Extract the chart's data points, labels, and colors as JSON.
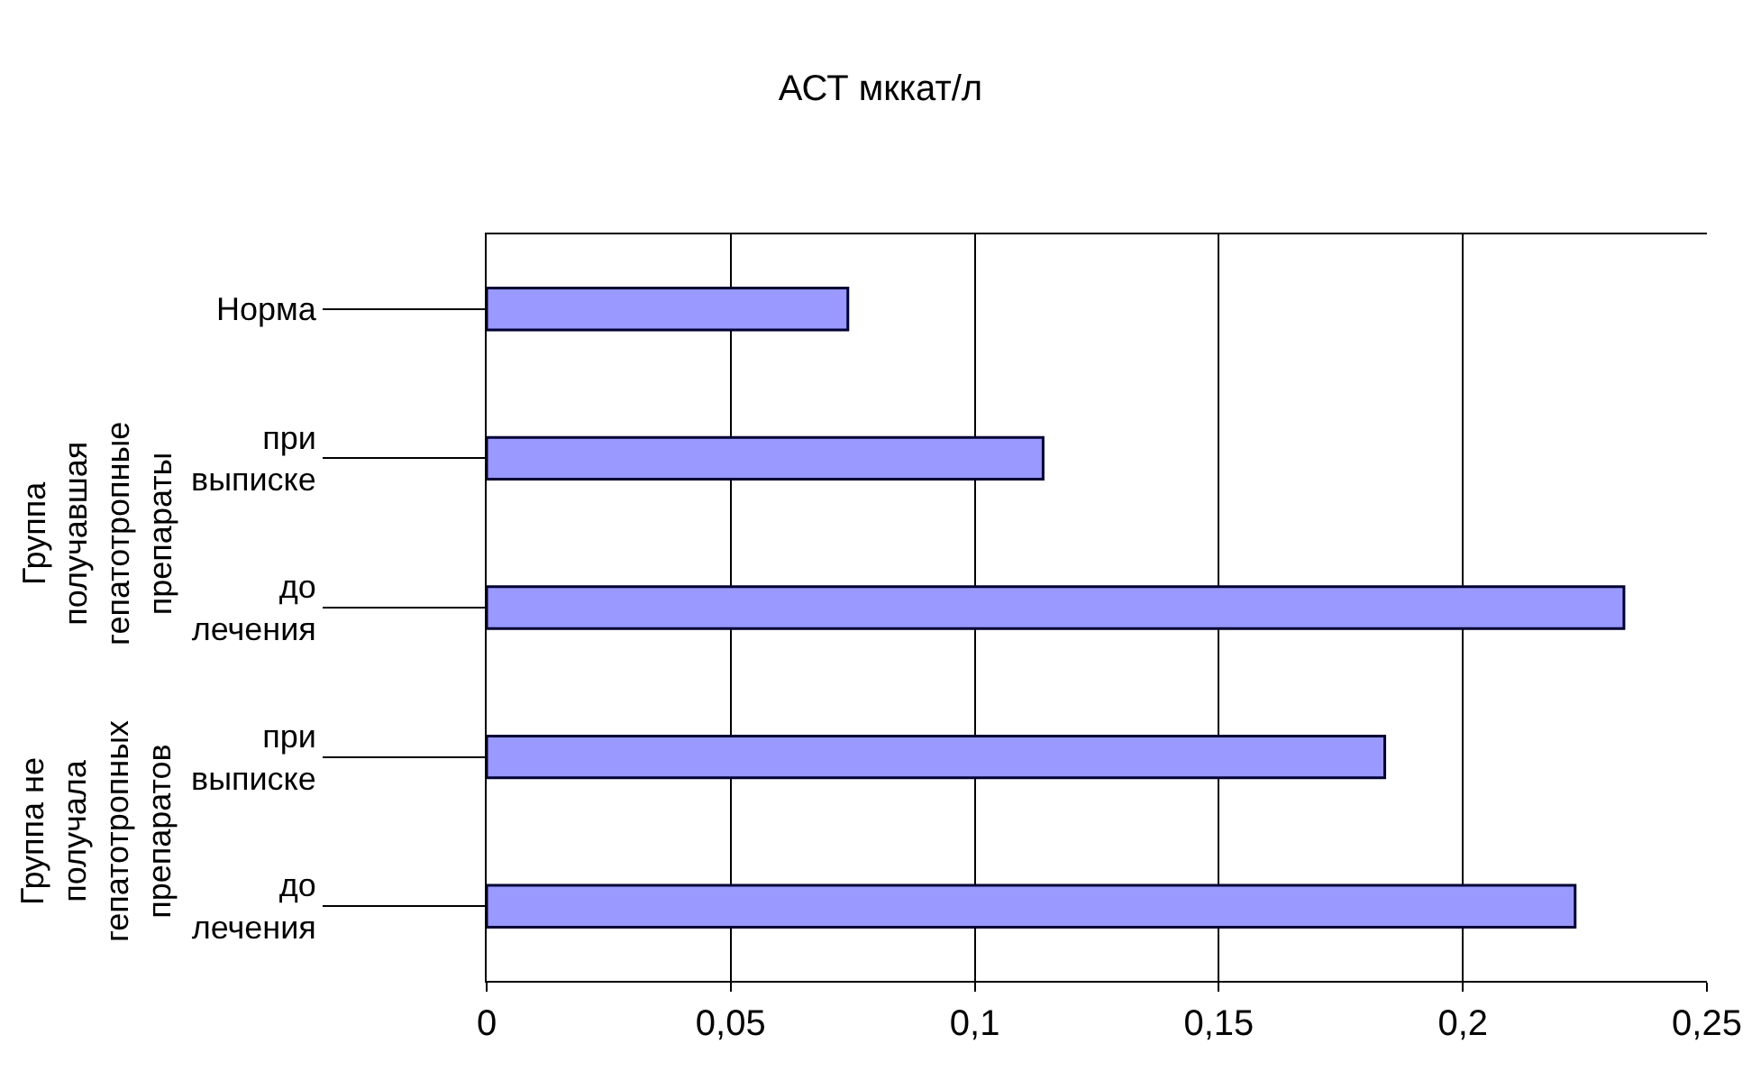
{
  "chart_data": {
    "type": "bar",
    "orientation": "horizontal",
    "title": "АСТ мккат/л",
    "categories": [
      "Норма",
      "при выписке",
      "до лечения",
      "при выписке",
      "до лечения"
    ],
    "values": [
      0.074,
      0.114,
      0.233,
      0.184,
      0.223
    ],
    "color": "#9999ff",
    "annotations": [
      "Группа получавшая гепатотропные препараты",
      "Группа не получала гепатотропных препаратов"
    ],
    "xlim": [
      0,
      0.25
    ],
    "xticks": [
      0,
      {
        "value": 0.05,
        "label": "0,05"
      },
      {
        "value": 0.1,
        "label": "0,1"
      },
      {
        "value": 0.15,
        "label": "0,15"
      },
      {
        "value": 0.2,
        "label": "0,2"
      },
      {
        "value": 0.25,
        "label": "0,25"
      }
    ],
    "grid": "x",
    "legend": false
  }
}
